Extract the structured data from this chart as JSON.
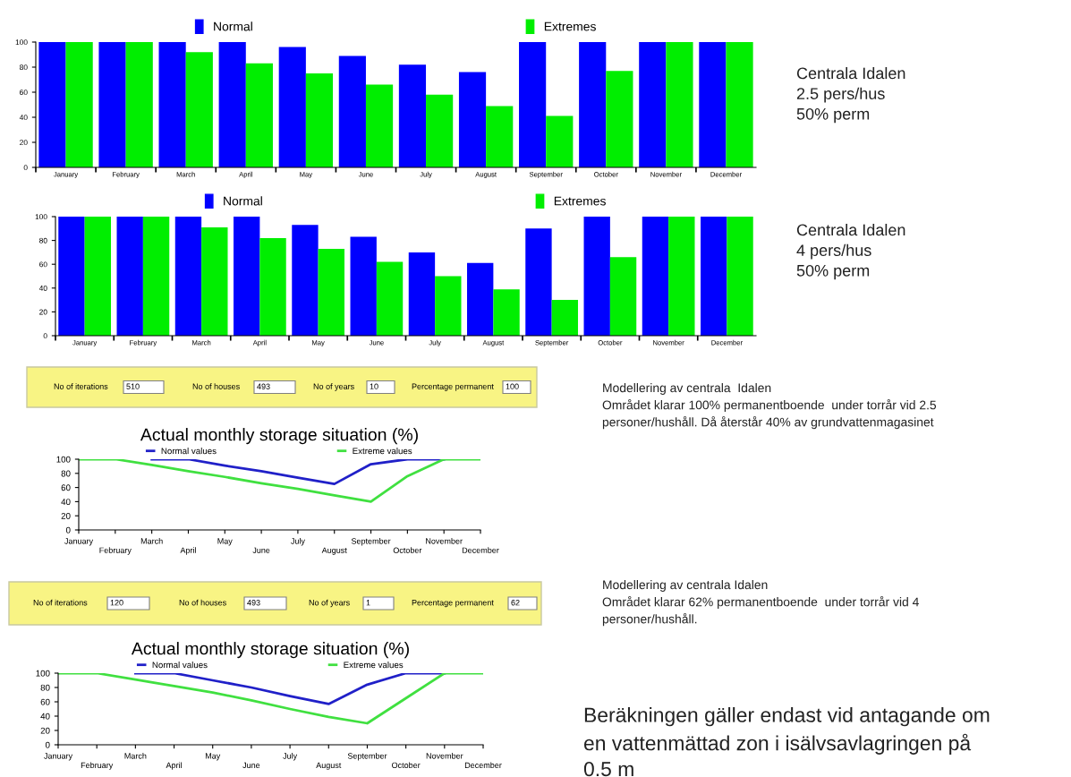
{
  "chart_data": [
    {
      "type": "bar",
      "categories": [
        "January",
        "February",
        "March",
        "April",
        "May",
        "June",
        "July",
        "August",
        "September",
        "October",
        "November",
        "December"
      ],
      "series": [
        {
          "name": "Normal",
          "color": "#0000ff",
          "values": [
            100,
            100,
            100,
            100,
            96,
            89,
            82,
            76,
            100,
            100,
            100,
            100
          ]
        },
        {
          "name": "Extremes",
          "color": "#00ee00",
          "values": [
            100,
            100,
            92,
            83,
            75,
            66,
            58,
            49,
            41,
            77,
            100,
            100
          ]
        }
      ],
      "ylim": [
        0,
        100
      ],
      "yticks": [
        0,
        20,
        40,
        60,
        80,
        100
      ],
      "legend": "top",
      "annotations": [
        "Centrala Idalen\n2.5 pers/hus\n50% perm"
      ]
    },
    {
      "type": "bar",
      "categories": [
        "January",
        "February",
        "March",
        "April",
        "May",
        "June",
        "July",
        "August",
        "September",
        "October",
        "November",
        "December"
      ],
      "series": [
        {
          "name": "Normal",
          "color": "#0000ff",
          "values": [
            100,
            100,
            100,
            100,
            93,
            83,
            70,
            61,
            90,
            100,
            100,
            100
          ]
        },
        {
          "name": "Extremes",
          "color": "#00ee00",
          "values": [
            100,
            100,
            91,
            82,
            73,
            62,
            50,
            39,
            30,
            66,
            100,
            100
          ]
        }
      ],
      "ylim": [
        0,
        100
      ],
      "yticks": [
        0,
        20,
        40,
        60,
        80,
        100
      ],
      "legend": "top",
      "annotations": [
        "Centrala Idalen\n4 pers/hus\n50% perm"
      ]
    },
    {
      "type": "line",
      "title": "Actual monthly storage situation (%)",
      "categories": [
        "January",
        "February",
        "March",
        "April",
        "May",
        "June",
        "July",
        "August",
        "September",
        "October",
        "November",
        "December"
      ],
      "series": [
        {
          "name": "Normal values",
          "color": "#2020c8",
          "values": [
            null,
            null,
            100,
            100,
            91,
            83,
            74,
            65,
            93,
            100,
            100,
            null
          ]
        },
        {
          "name": "Extreme values",
          "color": "#40e040",
          "values": [
            100,
            100,
            92,
            83,
            75,
            66,
            58,
            49,
            40,
            76,
            100,
            100
          ]
        }
      ],
      "ylim": [
        0,
        100
      ],
      "yticks": [
        0,
        20,
        40,
        60,
        80,
        100
      ],
      "legend": "top",
      "annotations": [
        "No of iterations",
        "510",
        "No of houses",
        "493",
        "No of years",
        "10",
        "Percentage permanent",
        "100",
        "Modellering av centrala  Idalen\nOmrådet klarar 100% permanentboende  under torrår vid 2.5\npersoner/hushåll. Då återstår 40% av grundvattenmagasinet"
      ]
    },
    {
      "type": "line",
      "title": "Actual monthly storage situation (%)",
      "categories": [
        "January",
        "February",
        "March",
        "April",
        "May",
        "June",
        "July",
        "August",
        "September",
        "October",
        "November",
        "December"
      ],
      "series": [
        {
          "name": "Normal values",
          "color": "#2020c8",
          "values": [
            null,
            null,
            100,
            100,
            90,
            80,
            68,
            57,
            84,
            100,
            100,
            null
          ]
        },
        {
          "name": "Extreme values",
          "color": "#40e040",
          "values": [
            100,
            100,
            91,
            82,
            73,
            62,
            50,
            39,
            30,
            65,
            100,
            100
          ]
        }
      ],
      "ylim": [
        0,
        100
      ],
      "yticks": [
        0,
        20,
        40,
        60,
        80,
        100
      ],
      "legend": "top",
      "annotations": [
        "No of iterations",
        "120",
        "No of houses",
        "493",
        "No of years",
        "1",
        "Percentage permanent",
        "62",
        "Modellering av centrala Idalen\nOmrådet klarar 62% permanentboende  under torrår vid 4\npersoner/hushåll.",
        "Beräkningen gäller endast vid antagande om\nen vattenmättad zon i isälvsavlagringen på\n0.5 m"
      ]
    }
  ]
}
